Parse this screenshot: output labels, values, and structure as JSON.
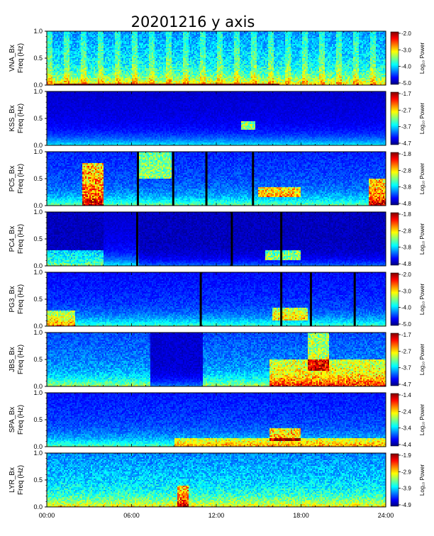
{
  "chart_data": {
    "type": "heatmap",
    "title": "20201216  y axis",
    "colorbar_label": "Log₁₀ Power",
    "side_note": "",
    "x_ticks": [
      "00:00",
      "06:00",
      "12:00",
      "18:00",
      "24:00"
    ],
    "x_range": [
      0,
      24
    ],
    "y_range": [
      0,
      1.0
    ],
    "y_ticks": [
      "0.0",
      "0.5",
      "1.0"
    ],
    "panels": [
      {
        "station": "VNA",
        "ylabel": [
          "VNA_Bx",
          "Freq (Hz)"
        ],
        "cbar": [
          -5.0,
          -2.0
        ],
        "cb_ticks": [
          "-2.0",
          "-3.0",
          "-4.0",
          "-5.0"
        ],
        "base": 0.42,
        "dark_ranges": [],
        "dark_level": 0,
        "gaps": [],
        "enhancements": [
          [
            0.5,
            16.5,
            0.0,
            0.03,
            0.95
          ]
        ],
        "striped": true
      },
      {
        "station": "KSS",
        "ylabel": [
          "KSS_Bx",
          "Freq (Hz)"
        ],
        "cbar": [
          -4.7,
          -1.7
        ],
        "cb_ticks": [
          "-1.7",
          "-2.7",
          "-3.7",
          "-4.7"
        ],
        "base": 0.12,
        "dark_ranges": [],
        "dark_level": 0,
        "gaps": [],
        "enhancements": [
          [
            13.8,
            14.8,
            0.3,
            0.45,
            0.45
          ]
        ],
        "striped": false
      },
      {
        "station": "PC5",
        "ylabel": [
          "PC5_Bx",
          "Freq (Hz)"
        ],
        "cbar": [
          -4.8,
          -1.8
        ],
        "cb_ticks": [
          "-1.8",
          "-2.8",
          "-3.8",
          "-4.8"
        ],
        "base": 0.24,
        "dark_ranges": [],
        "dark_level": 0,
        "gaps": [
          6.45,
          8.95,
          11.3,
          14.6
        ],
        "enhancements": [
          [
            2.5,
            4.0,
            0.0,
            0.8,
            0.55
          ],
          [
            6.5,
            8.8,
            0.5,
            1.0,
            0.35
          ],
          [
            15.0,
            18.0,
            0.15,
            0.35,
            0.45
          ],
          [
            22.8,
            24.0,
            0.0,
            0.5,
            0.5
          ]
        ],
        "striped": false
      },
      {
        "station": "PC4",
        "ylabel": [
          "PC4_Bx",
          "Freq (Hz)"
        ],
        "cbar": [
          -4.8,
          -1.8
        ],
        "cb_ticks": [
          "-1.8",
          "-2.8",
          "-3.8",
          "-4.8"
        ],
        "base": 0.12,
        "dark_ranges": [
          [
            0,
            4.0
          ],
          [
            6.5,
            24.0
          ]
        ],
        "dark_level": 0.03,
        "gaps": [
          6.4,
          13.1,
          16.6
        ],
        "enhancements": [
          [
            15.5,
            18.0,
            0.1,
            0.3,
            0.45
          ],
          [
            0.0,
            4.0,
            0.0,
            0.3,
            0.3
          ]
        ],
        "striped": false
      },
      {
        "station": "PG3",
        "ylabel": [
          "PG3_Bx",
          "Freq (Hz)"
        ],
        "cbar": [
          -5.0,
          -2.0
        ],
        "cb_ticks": [
          "-2.0",
          "-3.0",
          "-4.0",
          "-5.0"
        ],
        "base": 0.2,
        "dark_ranges": [],
        "dark_level": 0,
        "gaps": [
          10.9,
          16.6,
          18.7,
          21.8
        ],
        "enhancements": [
          [
            16.0,
            18.5,
            0.1,
            0.35,
            0.4
          ],
          [
            0.0,
            2.0,
            0.0,
            0.3,
            0.35
          ]
        ],
        "striped": false
      },
      {
        "station": "JBS",
        "ylabel": [
          "JBS_Bx",
          "Freq (Hz)"
        ],
        "cbar": [
          -4.7,
          -1.7
        ],
        "cb_ticks": [
          "-1.7",
          "-2.7",
          "-3.7",
          "-4.7"
        ],
        "base": 0.3,
        "dark_ranges": [
          [
            7.3,
            11.0
          ]
        ],
        "dark_level": 0.05,
        "gaps": [],
        "enhancements": [
          [
            15.8,
            24.0,
            0.0,
            0.5,
            0.35
          ],
          [
            18.5,
            20.0,
            0.3,
            1.0,
            0.35
          ]
        ],
        "striped": false
      },
      {
        "station": "SPA",
        "ylabel": [
          "SPA_Bx",
          "Freq (Hz)"
        ],
        "cbar": [
          -4.4,
          -1.4
        ],
        "cb_ticks": [
          "-1.4",
          "-2.4",
          "-3.4",
          "-4.4"
        ],
        "base": 0.22,
        "dark_ranges": [],
        "dark_level": 0,
        "gaps": [],
        "enhancements": [
          [
            15.8,
            18.0,
            0.1,
            0.35,
            0.45
          ],
          [
            9.0,
            24.0,
            0.0,
            0.15,
            0.3
          ]
        ],
        "striped": false
      },
      {
        "station": "LYR",
        "ylabel": [
          "LYR_Bx",
          "Freq (Hz)"
        ],
        "cbar": [
          -4.9,
          -1.9
        ],
        "cb_ticks": [
          "-1.9",
          "-2.9",
          "-3.9",
          "-4.9"
        ],
        "base": 0.4,
        "dark_ranges": [],
        "dark_level": 0,
        "gaps": [],
        "enhancements": [
          [
            9.2,
            10.0,
            0.0,
            0.4,
            0.35
          ]
        ],
        "striped": false
      }
    ]
  }
}
